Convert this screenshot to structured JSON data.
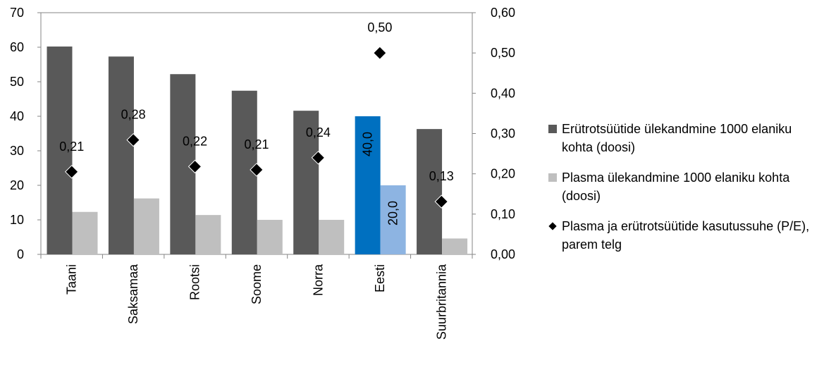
{
  "chart_data": {
    "type": "bar",
    "categories": [
      "Taani",
      "Saksamaa",
      "Rootsi",
      "Soome",
      "Norra",
      "Eesti",
      "Suurbritannia"
    ],
    "series": [
      {
        "name": "Erütrotsüütide ülekandmine 1000 elaniku kohta (doosi)",
        "type": "bar",
        "axis": "left",
        "values": [
          60.2,
          57.3,
          52.2,
          47.4,
          41.6,
          40.0,
          36.3
        ],
        "color": "#595959",
        "data_labels": [
          "",
          "",
          "",
          "",
          "",
          "40,0",
          ""
        ]
      },
      {
        "name": "Plasma ülekandmine 1000 elaniku kohta (doosi)",
        "type": "bar",
        "axis": "left",
        "values": [
          12.3,
          16.2,
          11.4,
          10.0,
          10.0,
          20.0,
          4.6
        ],
        "color": "#bfbfbf",
        "data_labels": [
          "",
          "",
          "",
          "",
          "",
          "20,0",
          ""
        ]
      },
      {
        "name": "Plasma ja erütrotsüütide kasutussuhe (P/E), parem telg",
        "type": "scatter",
        "axis": "right",
        "values": [
          0.205,
          0.284,
          0.218,
          0.21,
          0.24,
          0.5,
          0.131
        ],
        "color": "#000000",
        "data_labels": [
          "0,21",
          "0,28",
          "0,22",
          "0,21",
          "0,24",
          "0,50",
          "0,13"
        ]
      }
    ],
    "highlight": {
      "category": "Eesti",
      "bar_color": "#0070c0",
      "plasma_color": "#8db4e2"
    },
    "left_axis": {
      "min": 0,
      "max": 70,
      "ticks": [
        "0",
        "10",
        "20",
        "30",
        "40",
        "50",
        "60",
        "70"
      ]
    },
    "right_axis": {
      "min": 0,
      "max": 0.6,
      "ticks": [
        "0,00",
        "0,10",
        "0,20",
        "0,30",
        "0,40",
        "0,50",
        "0,60"
      ]
    },
    "grid": false,
    "legend_position": "right"
  },
  "legend": {
    "items": [
      {
        "label": "Erütrotsüütide ülekandmine 1000 elaniku kohta (doosi)",
        "color": "#595959"
      },
      {
        "label": "Plasma ülekandmine 1000 elaniku kohta (doosi)",
        "color": "#bfbfbf"
      },
      {
        "label": "Plasma ja erütrotsüütide kasutussuhe (P/E), parem telg",
        "color": "#000000"
      }
    ]
  }
}
